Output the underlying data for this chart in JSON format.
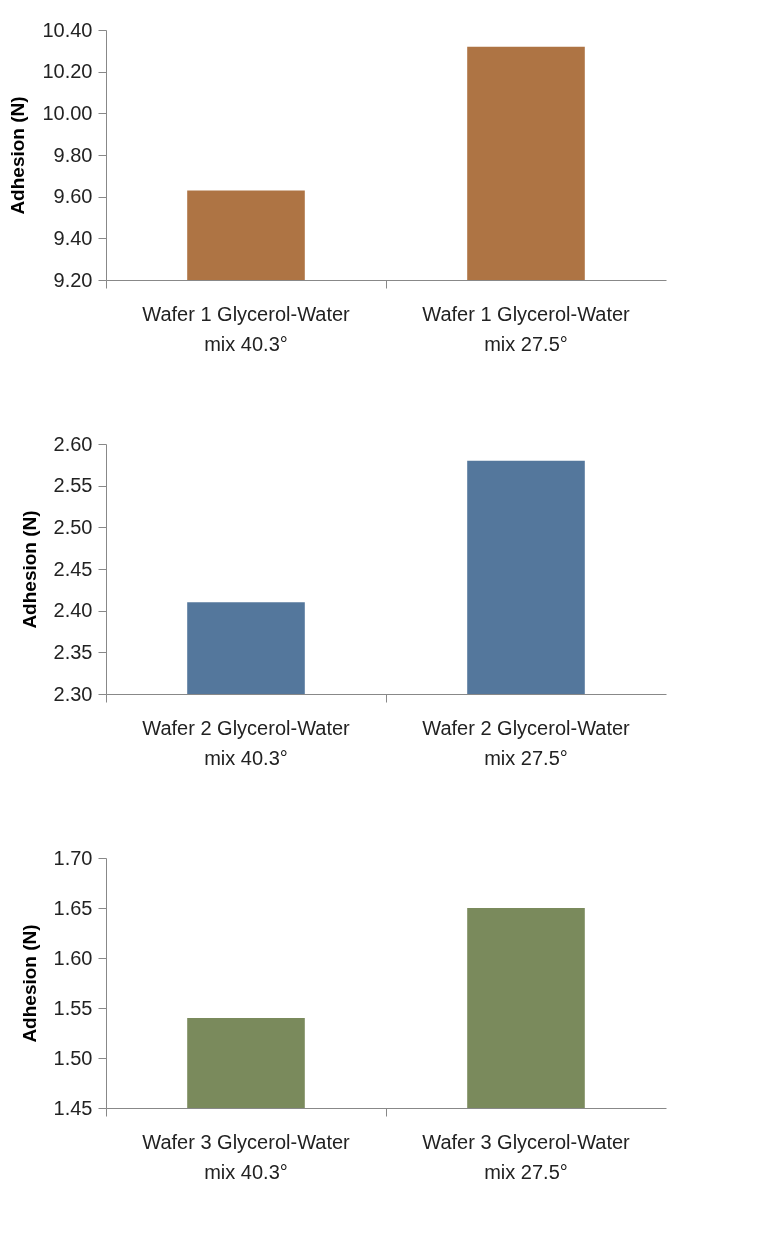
{
  "chart_data": [
    {
      "type": "bar",
      "ylabel": "Adhesion (N)",
      "categories": [
        "Wafer 1 Glycerol-Water mix 40.3°",
        "Wafer 1 Glycerol-Water mix 27.5°"
      ],
      "values": [
        9.63,
        10.32
      ],
      "color": "#ae7444",
      "ylim": [
        9.2,
        10.4
      ],
      "yticks": [
        {
          "value": 9.2,
          "label": "9.20"
        },
        {
          "value": 9.4,
          "label": "9.40"
        },
        {
          "value": 9.6,
          "label": "9.60"
        },
        {
          "value": 9.8,
          "label": "9.80"
        },
        {
          "value": 10.0,
          "label": "10.00"
        },
        {
          "value": 10.2,
          "label": "10.20"
        },
        {
          "value": 10.4,
          "label": "10.40"
        }
      ]
    },
    {
      "type": "bar",
      "ylabel": "Adhesion (N)",
      "categories": [
        "Wafer 2 Glycerol-Water mix 40.3°",
        "Wafer 2 Glycerol-Water mix 27.5°"
      ],
      "values": [
        2.41,
        2.58
      ],
      "color": "#54779c",
      "ylim": [
        2.3,
        2.6
      ],
      "yticks": [
        {
          "value": 2.3,
          "label": "2.30"
        },
        {
          "value": 2.35,
          "label": "2.35"
        },
        {
          "value": 2.4,
          "label": "2.40"
        },
        {
          "value": 2.45,
          "label": "2.45"
        },
        {
          "value": 2.5,
          "label": "2.50"
        },
        {
          "value": 2.55,
          "label": "2.55"
        },
        {
          "value": 2.6,
          "label": "2.60"
        }
      ]
    },
    {
      "type": "bar",
      "ylabel": "Adhesion (N)",
      "categories": [
        "Wafer 3 Glycerol-Water mix 40.3°",
        "Wafer 3 Glycerol-Water mix 27.5°"
      ],
      "values": [
        1.54,
        1.65
      ],
      "color": "#7a8a5c",
      "ylim": [
        1.45,
        1.7
      ],
      "yticks": [
        {
          "value": 1.45,
          "label": "1.45"
        },
        {
          "value": 1.5,
          "label": "1.50"
        },
        {
          "value": 1.55,
          "label": "1.55"
        },
        {
          "value": 1.6,
          "label": "1.60"
        },
        {
          "value": 1.65,
          "label": "1.65"
        },
        {
          "value": 1.7,
          "label": "1.70"
        }
      ]
    }
  ]
}
